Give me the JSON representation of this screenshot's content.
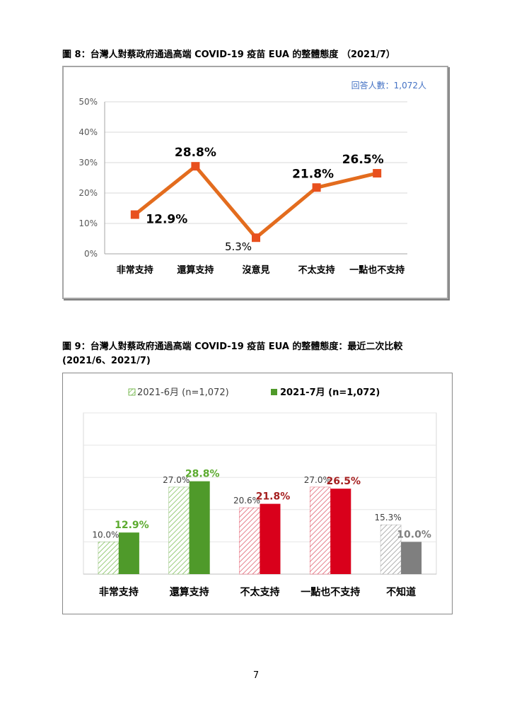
{
  "figure8": {
    "caption": "圖 8：台灣人對蔡政府通過高端 COVID-19 疫苗 EUA 的整體態度 （2021/7）",
    "note": "回答人數：1,072人",
    "chart_data": {
      "type": "line",
      "categories": [
        "非常支持",
        "還算支持",
        "沒意見",
        "不太支持",
        "一點也不支持"
      ],
      "values": [
        12.9,
        28.8,
        5.3,
        21.8,
        26.5
      ],
      "value_labels": [
        "12.9%",
        "28.8%",
        "5.3%",
        "21.8%",
        "26.5%"
      ],
      "y_ticks": [
        "0%",
        "10%",
        "20%",
        "30%",
        "40%",
        "50%"
      ],
      "ylim": [
        0,
        50
      ],
      "grid": true,
      "color": "#e36c1e",
      "marker_color": "#e8501e"
    }
  },
  "figure9": {
    "caption_line1": "圖 9：台灣人對蔡政府通過高端 COVID-19 疫苗 EUA 的整體態度：最近二次比較",
    "caption_line2": "(2021/6、2021/7)",
    "chart_data": {
      "type": "bar",
      "categories": [
        "非常支持",
        "還算支持",
        "不太支持",
        "一點也不支持",
        "不知道"
      ],
      "series": [
        {
          "name": "2021-6月 (n=1,072)",
          "values": [
            10.0,
            27.0,
            20.6,
            27.0,
            15.3
          ],
          "labels": [
            "10.0%",
            "27.0%",
            "20.6%",
            "27.0%",
            "15.3%"
          ],
          "style": "hatched"
        },
        {
          "name": "2021-7月 (n=1,072)",
          "values": [
            12.9,
            28.8,
            21.8,
            26.5,
            10.0
          ],
          "labels": [
            "12.9%",
            "28.8%",
            "21.8%",
            "26.5%",
            "10.0%"
          ],
          "style": "solid"
        }
      ],
      "category_colors": [
        "#4f9a2a",
        "#4f9a2a",
        "#d9001b",
        "#d9001b",
        "#7f7f7f"
      ],
      "label_colors": [
        "#5cab2f",
        "#5cab2f",
        "#a52020",
        "#a52020",
        "#7f7f7f"
      ],
      "legend_position": "top",
      "ylim": [
        0,
        50
      ],
      "grid": true
    }
  },
  "page_number": "7"
}
